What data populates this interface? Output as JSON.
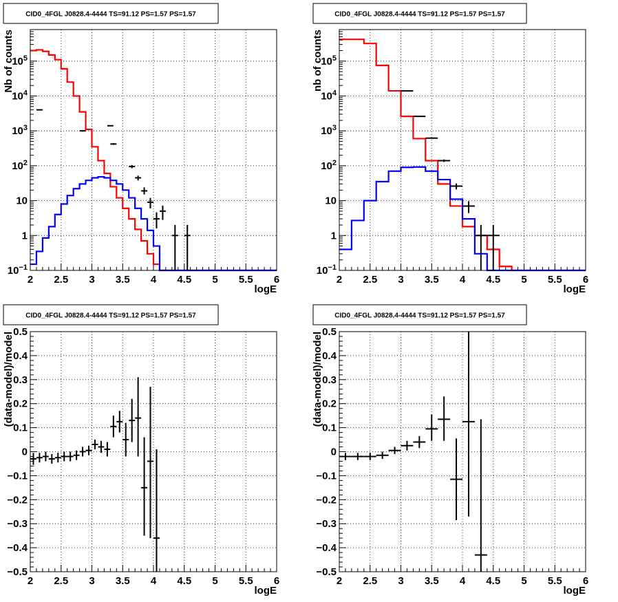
{
  "chart_data": [
    {
      "type": "line",
      "title": "CID0_4FGL J0828.4-4444 TS=91.12 PS=1.57 PS=1.57",
      "xlabel": "logE",
      "ylabel": "Nb of counts",
      "xlim": [
        2,
        6
      ],
      "ylim": [
        0.1,
        800000
      ],
      "yscale": "log",
      "grid": true,
      "xticks": [
        "2",
        "2.5",
        "3",
        "3.5",
        "4",
        "4.5",
        "5",
        "5.5",
        "6"
      ],
      "yticks": [
        {
          "v": 0.1,
          "base": "10",
          "exp": "−1"
        },
        {
          "v": 1,
          "label": "1"
        },
        {
          "v": 10,
          "label": "10"
        },
        {
          "v": 100,
          "base": "10",
          "exp": "2"
        },
        {
          "v": 1000,
          "base": "10",
          "exp": "3"
        },
        {
          "v": 10000,
          "base": "10",
          "exp": "4"
        },
        {
          "v": 100000,
          "base": "10",
          "exp": "5"
        }
      ],
      "bin_edges": [
        2,
        2.1,
        2.2,
        2.3,
        2.4,
        2.5,
        2.6,
        2.7,
        2.8,
        2.9,
        3,
        3.1,
        3.2,
        3.3,
        3.4,
        3.5,
        3.6,
        3.7,
        3.8,
        3.9,
        4,
        4.1,
        4.2,
        4.3,
        4.4,
        4.5,
        4.6,
        4.7,
        4.8,
        4.9,
        5,
        5.1,
        5.2,
        5.3,
        5.4,
        5.5,
        5.6,
        5.7,
        5.8,
        5.9,
        6
      ],
      "series": [
        {
          "color": "#ff0000",
          "style": "hist",
          "values": [
            200000,
            210000,
            190000,
            150000,
            110000,
            60000,
            25000,
            10000,
            3500,
            1100,
            350,
            140,
            60,
            25,
            12,
            6,
            3,
            1.5,
            0.7,
            0.3,
            0.15,
            0.1,
            0.1,
            0.1,
            0.1,
            0.1,
            0.1,
            0.1,
            0.1,
            0.1,
            0.1,
            0.1,
            0.1,
            0.1,
            0.1,
            0.1,
            0.1,
            0.1,
            0.1,
            0.1
          ]
        },
        {
          "color": "#0000ff",
          "style": "hist",
          "values": [
            0.15,
            0.35,
            0.85,
            1.8,
            4,
            8,
            14,
            22,
            30,
            38,
            45,
            48,
            45,
            38,
            30,
            20,
            12,
            6,
            3,
            1.4,
            0.5,
            0.1,
            0.1,
            0.1,
            0.1,
            0.1,
            0.1,
            0.1,
            0.1,
            0.1,
            0.1,
            0.1,
            0.1,
            0.1,
            0.1,
            0.1,
            0.1,
            0.1,
            0.1,
            0.1
          ]
        },
        {
          "color": "#000000",
          "style": "points",
          "points": [
            {
              "x": 2.15,
              "y": 4000,
              "lo": 3950,
              "hi": 4050,
              "xe": 0.05
            },
            {
              "x": 2.85,
              "y": 1000,
              "lo": 950,
              "hi": 1050,
              "xe": 0.05
            },
            {
              "x": 3.3,
              "y": 1400,
              "lo": 1350,
              "hi": 1450,
              "xe": 0.05
            },
            {
              "x": 3.35,
              "y": 420,
              "lo": 395,
              "hi": 445,
              "xe": 0.05
            },
            {
              "x": 3.65,
              "y": 95,
              "lo": 85,
              "hi": 105,
              "xe": 0.05
            },
            {
              "x": 3.75,
              "y": 45,
              "lo": 38,
              "hi": 52,
              "xe": 0.05
            },
            {
              "x": 3.85,
              "y": 19,
              "lo": 15,
              "hi": 24,
              "xe": 0.05
            },
            {
              "x": 3.95,
              "y": 9,
              "lo": 6,
              "hi": 12,
              "xe": 0.05
            },
            {
              "x": 4.05,
              "y": 3,
              "lo": 1.6,
              "hi": 4.6,
              "xe": 0.05
            },
            {
              "x": 4.15,
              "y": 5,
              "lo": 2.8,
              "hi": 7.2,
              "xe": 0.05
            },
            {
              "x": 4.35,
              "y": 1,
              "lo": 0.1,
              "hi": 2,
              "xe": 0.05
            },
            {
              "x": 4.55,
              "y": 1,
              "lo": 0.1,
              "hi": 2,
              "xe": 0.05
            }
          ]
        }
      ]
    },
    {
      "type": "line",
      "title": "CID0_4FGL J0828.4-4444 TS=91.12 PS=1.57 PS=1.57",
      "xlabel": "logE",
      "ylabel": "nb of counts",
      "xlim": [
        2,
        6
      ],
      "ylim": [
        0.1,
        800000
      ],
      "yscale": "log",
      "grid": true,
      "xticks": [
        "2",
        "2.5",
        "3",
        "3.5",
        "4",
        "4.5",
        "5",
        "5.5",
        "6"
      ],
      "yticks": [
        {
          "v": 0.1,
          "base": "10",
          "exp": "−1"
        },
        {
          "v": 1,
          "label": "1"
        },
        {
          "v": 10,
          "label": "10"
        },
        {
          "v": 100,
          "base": "10",
          "exp": "2"
        },
        {
          "v": 1000,
          "base": "10",
          "exp": "3"
        },
        {
          "v": 10000,
          "base": "10",
          "exp": "4"
        },
        {
          "v": 100000,
          "base": "10",
          "exp": "5"
        }
      ],
      "bin_edges": [
        2,
        2.2,
        2.4,
        2.6,
        2.8,
        3,
        3.2,
        3.4,
        3.6,
        3.8,
        4,
        4.2,
        4.4,
        4.6,
        4.8,
        5,
        5.2,
        5.4,
        5.6,
        5.8,
        6
      ],
      "series": [
        {
          "color": "#ff0000",
          "style": "hist",
          "values": [
            420000,
            420000,
            320000,
            75000,
            14000,
            2600,
            600,
            140,
            30,
            7,
            1.8,
            1,
            0.4,
            0.13,
            0.1,
            0.1,
            0.1,
            0.1,
            0.1,
            0.1
          ]
        },
        {
          "color": "#0000ff",
          "style": "hist",
          "values": [
            0.4,
            2.7,
            10,
            35,
            70,
            90,
            92,
            70,
            40,
            11,
            3,
            0.3,
            0.1,
            0.1,
            0.1,
            0.1,
            0.1,
            0.1,
            0.1,
            0.1
          ]
        },
        {
          "color": "#000000",
          "style": "points",
          "points": [
            {
              "x": 3.1,
              "y": 14000,
              "lo": 13800,
              "hi": 14200,
              "xe": 0.1
            },
            {
              "x": 3.3,
              "y": 2600,
              "lo": 2550,
              "hi": 2650,
              "xe": 0.1
            },
            {
              "x": 3.5,
              "y": 620,
              "lo": 600,
              "hi": 640,
              "xe": 0.1
            },
            {
              "x": 3.7,
              "y": 140,
              "lo": 128,
              "hi": 152,
              "xe": 0.1
            },
            {
              "x": 3.9,
              "y": 26,
              "lo": 21,
              "hi": 31,
              "xe": 0.1
            },
            {
              "x": 4.1,
              "y": 7,
              "lo": 4.4,
              "hi": 9.6,
              "xe": 0.1
            },
            {
              "x": 4.3,
              "y": 1,
              "lo": 0.1,
              "hi": 2,
              "xe": 0.1
            },
            {
              "x": 4.5,
              "y": 1,
              "lo": 0.1,
              "hi": 2,
              "xe": 0.1
            }
          ]
        }
      ]
    },
    {
      "type": "scatter",
      "title": "CID0_4FGL J0828.4-4444 TS=91.12 PS=1.57 PS=1.57",
      "xlabel": "logE",
      "ylabel": "(data-model)/model",
      "xlim": [
        2,
        6
      ],
      "ylim": [
        -0.5,
        0.5
      ],
      "yscale": "linear",
      "grid": true,
      "xticks": [
        "2",
        "2.5",
        "3",
        "3.5",
        "4",
        "4.5",
        "5",
        "5.5",
        "6"
      ],
      "yticks": [
        {
          "v": -0.5,
          "label": "−0.5"
        },
        {
          "v": -0.4,
          "label": "−0.4"
        },
        {
          "v": -0.3,
          "label": "−0.3"
        },
        {
          "v": -0.2,
          "label": "−0.2"
        },
        {
          "v": -0.1,
          "label": "−0.1"
        },
        {
          "v": 0,
          "label": "0"
        },
        {
          "v": 0.1,
          "label": "0.1"
        },
        {
          "v": 0.2,
          "label": "0.2"
        },
        {
          "v": 0.3,
          "label": "0.3"
        },
        {
          "v": 0.4,
          "label": "0.4"
        },
        {
          "v": 0.5,
          "label": "0.5"
        }
      ],
      "series": [
        {
          "color": "#000000",
          "style": "points",
          "points": [
            {
              "x": 2.05,
              "y": -0.03,
              "lo": -0.055,
              "hi": -0.005,
              "xe": 0.05
            },
            {
              "x": 2.15,
              "y": -0.025,
              "lo": -0.045,
              "hi": -0.005,
              "xe": 0.05
            },
            {
              "x": 2.25,
              "y": -0.02,
              "lo": -0.04,
              "hi": 0.0,
              "xe": 0.05
            },
            {
              "x": 2.35,
              "y": -0.03,
              "lo": -0.05,
              "hi": -0.01,
              "xe": 0.05
            },
            {
              "x": 2.45,
              "y": -0.025,
              "lo": -0.045,
              "hi": -0.005,
              "xe": 0.05
            },
            {
              "x": 2.55,
              "y": -0.02,
              "lo": -0.04,
              "hi": 0.0,
              "xe": 0.05
            },
            {
              "x": 2.65,
              "y": -0.02,
              "lo": -0.04,
              "hi": 0.0,
              "xe": 0.05
            },
            {
              "x": 2.75,
              "y": -0.015,
              "lo": -0.035,
              "hi": 0.005,
              "xe": 0.05
            },
            {
              "x": 2.85,
              "y": 0.0,
              "lo": -0.02,
              "hi": 0.02,
              "xe": 0.05
            },
            {
              "x": 2.95,
              "y": 0.005,
              "lo": -0.015,
              "hi": 0.025,
              "xe": 0.05
            },
            {
              "x": 3.05,
              "y": 0.03,
              "lo": 0.01,
              "hi": 0.05,
              "xe": 0.05
            },
            {
              "x": 3.15,
              "y": 0.02,
              "lo": -0.005,
              "hi": 0.045,
              "xe": 0.05
            },
            {
              "x": 3.25,
              "y": 0.01,
              "lo": -0.02,
              "hi": 0.04,
              "xe": 0.05
            },
            {
              "x": 3.35,
              "y": 0.105,
              "lo": 0.06,
              "hi": 0.15,
              "xe": 0.05
            },
            {
              "x": 3.45,
              "y": 0.125,
              "lo": 0.08,
              "hi": 0.17,
              "xe": 0.05
            },
            {
              "x": 3.55,
              "y": 0.05,
              "lo": -0.02,
              "hi": 0.12,
              "xe": 0.05
            },
            {
              "x": 3.65,
              "y": 0.13,
              "lo": 0.04,
              "hi": 0.22,
              "xe": 0.05
            },
            {
              "x": 3.75,
              "y": 0.14,
              "lo": -0.02,
              "hi": 0.31,
              "xe": 0.05
            },
            {
              "x": 3.85,
              "y": -0.15,
              "lo": -0.35,
              "hi": 0.06,
              "xe": 0.05
            },
            {
              "x": 3.95,
              "y": -0.04,
              "lo": -0.36,
              "hi": 0.27,
              "xe": 0.05
            },
            {
              "x": 4.05,
              "y": -0.36,
              "lo": -0.5,
              "hi": 0.01,
              "xe": 0.05
            }
          ]
        }
      ]
    },
    {
      "type": "scatter",
      "title": "CID0_4FGL J0828.4-4444 TS=91.12 PS=1.57 PS=1.57",
      "xlabel": "logE",
      "ylabel": "(data-model)/model",
      "xlim": [
        2,
        6
      ],
      "ylim": [
        -0.5,
        0.5
      ],
      "yscale": "linear",
      "grid": true,
      "xticks": [
        "2",
        "2.5",
        "3",
        "3.5",
        "4",
        "4.5",
        "5",
        "5.5",
        "6"
      ],
      "yticks": [
        {
          "v": -0.5,
          "label": "−0.5"
        },
        {
          "v": -0.4,
          "label": "−0.4"
        },
        {
          "v": -0.3,
          "label": "−0.3"
        },
        {
          "v": -0.2,
          "label": "−0.2"
        },
        {
          "v": -0.1,
          "label": "−0.1"
        },
        {
          "v": 0,
          "label": "0"
        },
        {
          "v": 0.1,
          "label": "0.1"
        },
        {
          "v": 0.2,
          "label": "0.2"
        },
        {
          "v": 0.3,
          "label": "0.3"
        },
        {
          "v": 0.4,
          "label": "0.4"
        },
        {
          "v": 0.5,
          "label": "0.5"
        }
      ],
      "series": [
        {
          "color": "#000000",
          "style": "points",
          "points": [
            {
              "x": 2.1,
              "y": -0.02,
              "lo": -0.035,
              "hi": -0.005,
              "xe": 0.1
            },
            {
              "x": 2.3,
              "y": -0.02,
              "lo": -0.035,
              "hi": -0.005,
              "xe": 0.1
            },
            {
              "x": 2.5,
              "y": -0.02,
              "lo": -0.035,
              "hi": -0.005,
              "xe": 0.1
            },
            {
              "x": 2.7,
              "y": -0.015,
              "lo": -0.03,
              "hi": 0.0,
              "xe": 0.1
            },
            {
              "x": 2.9,
              "y": 0.005,
              "lo": -0.01,
              "hi": 0.02,
              "xe": 0.1
            },
            {
              "x": 3.1,
              "y": 0.025,
              "lo": 0.005,
              "hi": 0.045,
              "xe": 0.1
            },
            {
              "x": 3.3,
              "y": 0.04,
              "lo": 0.015,
              "hi": 0.065,
              "xe": 0.1
            },
            {
              "x": 3.5,
              "y": 0.095,
              "lo": 0.045,
              "hi": 0.155,
              "xe": 0.1
            },
            {
              "x": 3.7,
              "y": 0.135,
              "lo": 0.045,
              "hi": 0.23,
              "xe": 0.1
            },
            {
              "x": 3.9,
              "y": -0.115,
              "lo": -0.285,
              "hi": 0.055,
              "xe": 0.1
            },
            {
              "x": 4.1,
              "y": 0.125,
              "lo": -0.27,
              "hi": 0.5,
              "xe": 0.1
            },
            {
              "x": 4.3,
              "y": -0.43,
              "lo": -0.5,
              "hi": 0.135,
              "xe": 0.1
            }
          ]
        }
      ]
    }
  ]
}
